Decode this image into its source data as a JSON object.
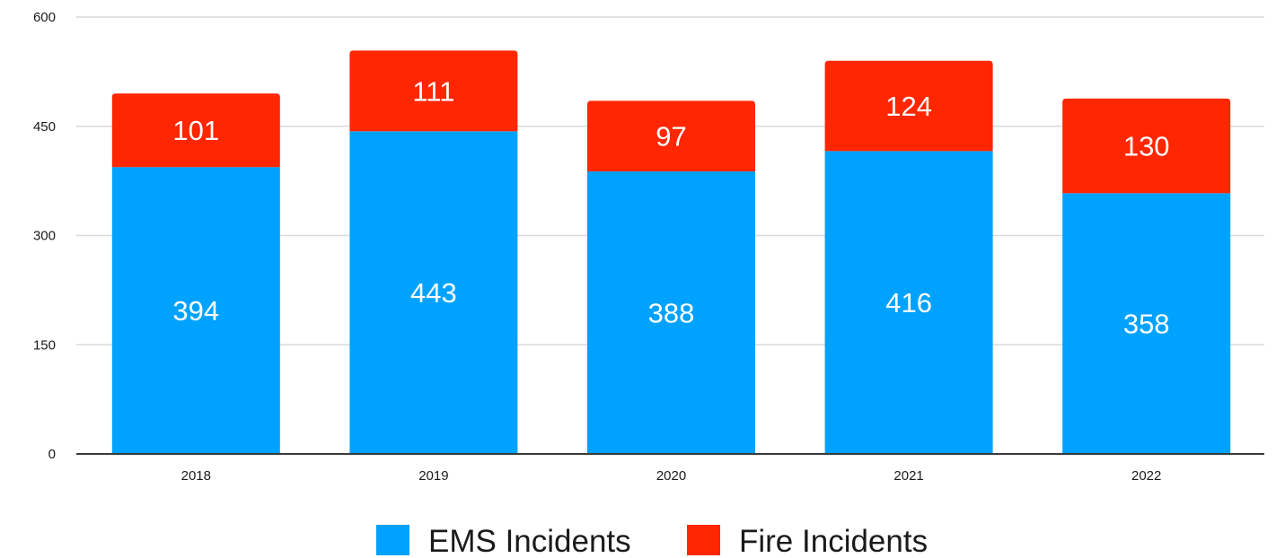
{
  "chart_data": {
    "type": "bar",
    "stacked": true,
    "categories": [
      "2018",
      "2019",
      "2020",
      "2021",
      "2022"
    ],
    "series": [
      {
        "name": "EMS Incidents",
        "values": [
          394,
          443,
          388,
          416,
          358
        ],
        "color": "#00A2FF"
      },
      {
        "name": "Fire Incidents",
        "values": [
          101,
          111,
          97,
          124,
          130
        ],
        "color": "#FF2600"
      }
    ],
    "ylim": [
      0,
      600
    ],
    "yticks": [
      0,
      150,
      300,
      450,
      600
    ],
    "title": "",
    "xlabel": "",
    "ylabel": "",
    "grid": true,
    "legend_position": "bottom-center"
  }
}
